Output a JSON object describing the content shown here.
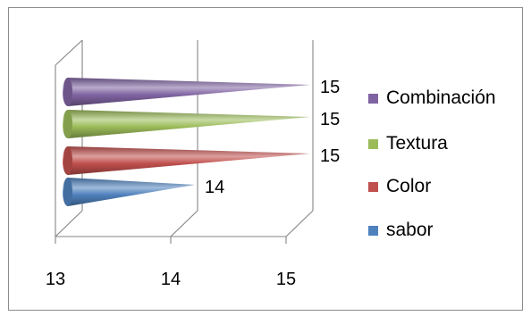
{
  "chart_data": {
    "type": "bar",
    "variant": "3d-cone-horizontal",
    "categories": [
      "sabor",
      "Color",
      "Textura",
      "Combinación"
    ],
    "values": [
      14,
      15,
      15,
      15
    ],
    "data_labels": [
      "14",
      "15",
      "15",
      "15"
    ],
    "xlim": [
      13,
      15
    ],
    "x_ticks": [
      "13",
      "14",
      "15"
    ],
    "colors": [
      "#4f81bd",
      "#c0504d",
      "#9bbb59",
      "#8064a2"
    ],
    "legend": {
      "position": "right",
      "entries": [
        "Combinación",
        "Textura",
        "Color",
        "sabor"
      ]
    },
    "grid": true
  }
}
